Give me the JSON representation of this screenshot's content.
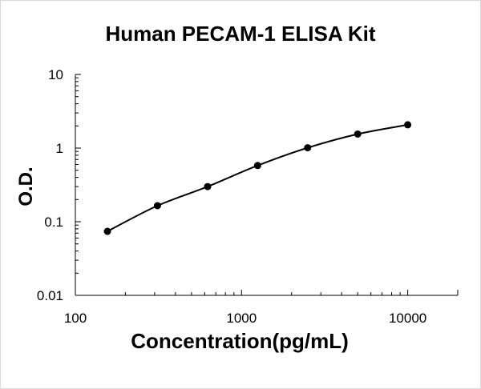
{
  "chart_data": {
    "type": "line",
    "title": "Human PECAM-1 ELISA Kit",
    "xlabel": "Concentration(pg/mL)",
    "ylabel": "O.D.",
    "x_scale": "log",
    "y_scale": "log",
    "xlim": [
      100,
      20000
    ],
    "ylim": [
      0.01,
      10
    ],
    "x_ticks": [
      "100",
      "1000",
      "10000"
    ],
    "y_ticks": [
      "0.01",
      "0.1",
      "1",
      "10"
    ],
    "grid": false,
    "legend": "none",
    "series": [
      {
        "x": [
          156,
          312,
          625,
          1250,
          2500,
          5000,
          10000
        ],
        "y": [
          0.074,
          0.165,
          0.3,
          0.58,
          1.01,
          1.55,
          2.07
        ]
      }
    ],
    "colors": {
      "line": "#000000",
      "marker": "#000000"
    }
  }
}
